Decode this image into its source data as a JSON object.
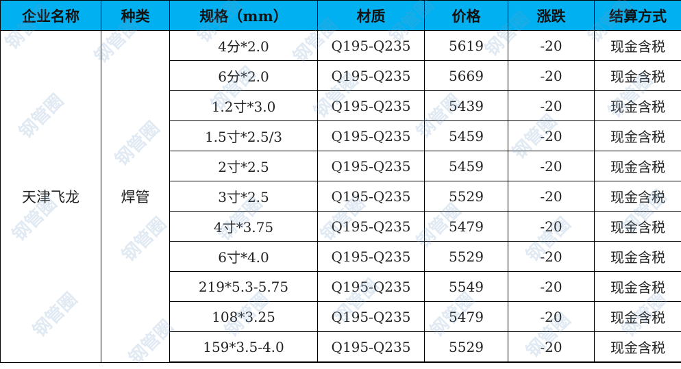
{
  "header": [
    "企业名称",
    "种类",
    "规格（mm）",
    "材质",
    "价格",
    "涨跌",
    "结算方式"
  ],
  "company": "天津飞龙",
  "category": "焊管",
  "rows": [
    {
      "spec": "4分*2.0",
      "material": "Q195-Q235",
      "price": "5619",
      "change": "-20",
      "settlement": "现金含税"
    },
    {
      "spec": "6分*2.0",
      "material": "Q195-Q235",
      "price": "5669",
      "change": "-20",
      "settlement": "现金含税"
    },
    {
      "spec": "1.2寸*3.0",
      "material": "Q195-Q235",
      "price": "5439",
      "change": "-20",
      "settlement": "现金含税"
    },
    {
      "spec": "1.5寸*2.5/3",
      "material": "Q195-Q235",
      "price": "5459",
      "change": "-20",
      "settlement": "现金含税"
    },
    {
      "spec": "2寸*2.5",
      "material": "Q195-Q235",
      "price": "5459",
      "change": "-20",
      "settlement": "现金含税"
    },
    {
      "spec": "3寸*2.5",
      "material": "Q195-Q235",
      "price": "5529",
      "change": "-20",
      "settlement": "现金含税"
    },
    {
      "spec": "4寸*3.75",
      "material": "Q195-Q235",
      "price": "5479",
      "change": "-20",
      "settlement": "现金含税"
    },
    {
      "spec": "6寸*4.0",
      "material": "Q195-Q235",
      "price": "5529",
      "change": "-20",
      "settlement": "现金含税"
    },
    {
      "spec": "219*5.3-5.75",
      "material": "Q195-Q235",
      "price": "5549",
      "change": "-20",
      "settlement": "现金含税"
    },
    {
      "spec": "108*3.25",
      "material": "Q195-Q235",
      "price": "5479",
      "change": "-20",
      "settlement": "现金含税"
    },
    {
      "spec": "159*3.5-4.0",
      "material": "Q195-Q235",
      "price": "5529",
      "change": "-20",
      "settlement": "现金含税"
    }
  ],
  "watermark": "钢管圈"
}
